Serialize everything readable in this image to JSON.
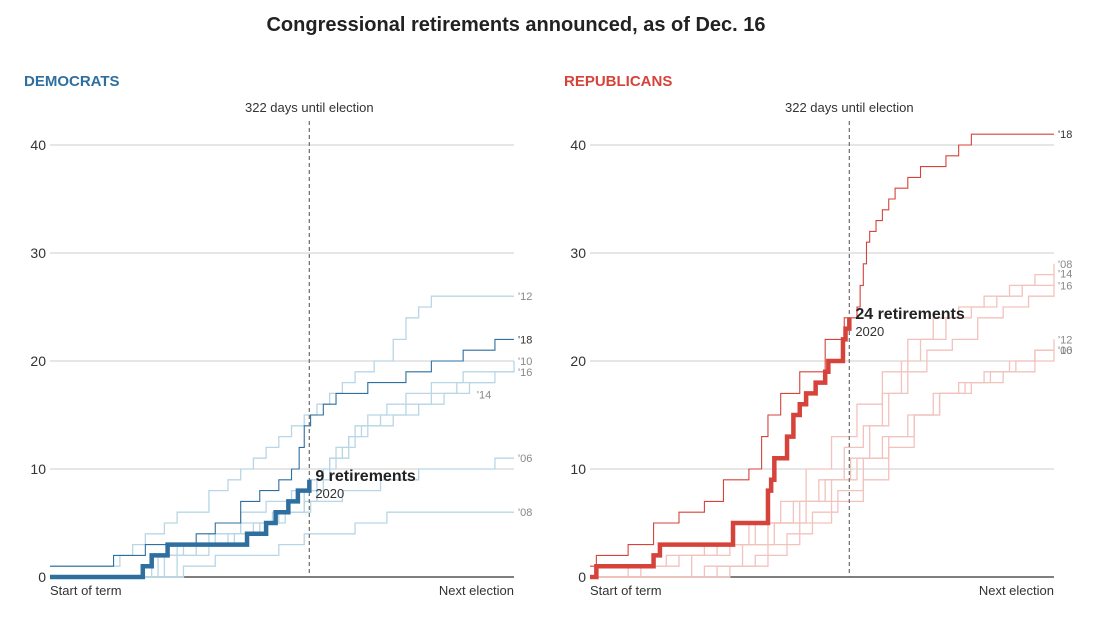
{
  "title": "Congressional retirements announced, as of Dec. 16",
  "colors": {
    "dem": "#2f6f9f",
    "dem_light": "#b9d6e6",
    "rep": "#d6433b",
    "rep_light": "#f2c2bd",
    "grid": "#cccccc",
    "text": "#333333",
    "muted": "#888888"
  },
  "chart_data": [
    {
      "type": "line",
      "panel_title": "DEMOCRATS",
      "xlabel_start": "Start of term",
      "xlabel_end": "Next election",
      "xlim": [
        0,
        730
      ],
      "ylim": [
        0,
        40
      ],
      "yticks": [
        0,
        10,
        20,
        30,
        40
      ],
      "grid": true,
      "marker": {
        "x": 408,
        "label": "322 days until election"
      },
      "current": {
        "name": "2020",
        "count_label": "9 retirements",
        "x": [
          0,
          140,
          146,
          155,
          160,
          170,
          185,
          200,
          230,
          240,
          300,
          310,
          330,
          340,
          345,
          355,
          360,
          375,
          382,
          390,
          398,
          408
        ],
        "y": [
          0,
          0,
          1,
          1,
          2,
          2,
          3,
          3,
          3,
          3,
          3,
          4,
          4,
          5,
          5,
          6,
          6,
          7,
          7,
          8,
          8,
          9
        ]
      },
      "series": [
        {
          "name": "'18",
          "emphasis": true,
          "x": [
            0,
            90,
            100,
            130,
            150,
            190,
            230,
            260,
            300,
            330,
            360,
            380,
            392,
            400,
            410,
            420,
            430,
            450,
            470,
            500,
            530,
            560,
            600,
            650,
            700,
            730
          ],
          "y": [
            1,
            1,
            2,
            2,
            3,
            3,
            4,
            5,
            7,
            8,
            9,
            10,
            12,
            14,
            15,
            15,
            16,
            17,
            17,
            18,
            18,
            19,
            20,
            21,
            22,
            22
          ]
        },
        {
          "name": "'12",
          "x": [
            0,
            100,
            110,
            130,
            150,
            180,
            200,
            250,
            280,
            300,
            320,
            340,
            360,
            380,
            400,
            420,
            440,
            460,
            480,
            510,
            540,
            560,
            580,
            600,
            650,
            730
          ],
          "y": [
            1,
            1,
            2,
            3,
            4,
            5,
            6,
            8,
            9,
            10,
            11,
            12,
            13,
            14,
            15,
            16,
            17,
            18,
            19,
            20,
            22,
            24,
            25,
            26,
            26,
            26
          ]
        },
        {
          "name": "'10",
          "x": [
            0,
            120,
            160,
            200,
            250,
            300,
            350,
            400,
            420,
            440,
            460,
            480,
            500,
            530,
            560,
            600,
            650,
            730
          ],
          "y": [
            0,
            0,
            2,
            3,
            4,
            5,
            6,
            7,
            9,
            11,
            12,
            14,
            15,
            16,
            17,
            18,
            19,
            20
          ]
        },
        {
          "name": "'16",
          "x": [
            0,
            120,
            180,
            230,
            280,
            320,
            360,
            400,
            430,
            450,
            470,
            490,
            520,
            560,
            600,
            640,
            700,
            730
          ],
          "y": [
            0,
            0,
            2,
            3,
            4,
            5,
            6,
            8,
            10,
            12,
            13,
            14,
            15,
            16,
            17,
            18,
            19,
            19
          ]
        },
        {
          "name": "'14",
          "x": [
            0,
            110,
            170,
            210,
            260,
            300,
            340,
            380,
            410,
            440,
            470,
            500,
            540,
            580,
            620,
            660,
            700
          ],
          "y": [
            0,
            0,
            2,
            3,
            4,
            6,
            7,
            8,
            9,
            11,
            13,
            14,
            15,
            16,
            17,
            18,
            18
          ]
        },
        {
          "name": "'06",
          "x": [
            0,
            130,
            200,
            250,
            290,
            330,
            370,
            410,
            460,
            520,
            580,
            640,
            700,
            730
          ],
          "y": [
            0,
            0,
            2,
            3,
            4,
            5,
            6,
            7,
            8,
            9,
            10,
            10,
            11,
            11
          ]
        },
        {
          "name": "'08",
          "x": [
            0,
            150,
            210,
            260,
            300,
            360,
            400,
            440,
            480,
            530,
            600,
            680,
            730
          ],
          "y": [
            0,
            0,
            1,
            2,
            2,
            3,
            4,
            4,
            5,
            6,
            6,
            6,
            6
          ]
        }
      ]
    },
    {
      "type": "line",
      "panel_title": "REPUBLICANS",
      "xlabel_start": "Start of term",
      "xlabel_end": "Next election",
      "xlim": [
        0,
        730
      ],
      "ylim": [
        0,
        40
      ],
      "yticks": [
        0,
        10,
        20,
        30,
        40
      ],
      "grid": true,
      "marker": {
        "x": 408,
        "label": "322 days until election"
      },
      "current": {
        "name": "2020",
        "count_label": "24 retirements",
        "x": [
          0,
          10,
          70,
          100,
          110,
          220,
          225,
          270,
          280,
          285,
          290,
          300,
          310,
          320,
          330,
          340,
          355,
          370,
          375,
          395,
          398,
          402,
          408
        ],
        "y": [
          0,
          1,
          1,
          2,
          3,
          3,
          5,
          5,
          8,
          9,
          11,
          11,
          13,
          15,
          16,
          17,
          18,
          19,
          20,
          20,
          22,
          23,
          24
        ]
      },
      "series": [
        {
          "name": "'18",
          "emphasis": true,
          "x": [
            0,
            10,
            60,
            100,
            140,
            180,
            210,
            250,
            270,
            280,
            300,
            330,
            370,
            400,
            420,
            425,
            430,
            435,
            440,
            450,
            460,
            470,
            480,
            500,
            520,
            540,
            560,
            580,
            600,
            620,
            650,
            700,
            730
          ],
          "y": [
            1,
            2,
            3,
            5,
            6,
            7,
            9,
            10,
            13,
            15,
            17,
            19,
            22,
            24,
            25,
            27,
            29,
            31,
            32,
            33,
            34,
            35,
            36,
            37,
            38,
            38,
            39,
            40,
            41,
            41,
            41,
            41,
            41
          ]
        },
        {
          "name": "'08",
          "x": [
            0,
            60,
            120,
            180,
            250,
            300,
            340,
            380,
            420,
            460,
            500,
            540,
            580,
            620,
            660,
            700,
            730
          ],
          "y": [
            0,
            1,
            2,
            3,
            5,
            7,
            10,
            13,
            16,
            19,
            22,
            24,
            25,
            26,
            27,
            28,
            29
          ]
        },
        {
          "name": "'14",
          "x": [
            0,
            80,
            140,
            200,
            260,
            320,
            360,
            400,
            430,
            460,
            490,
            520,
            560,
            600,
            640,
            680,
            730
          ],
          "y": [
            0,
            1,
            2,
            3,
            5,
            7,
            9,
            12,
            14,
            17,
            20,
            22,
            24,
            25,
            26,
            27,
            28
          ]
        },
        {
          "name": "'16",
          "x": [
            0,
            100,
            160,
            220,
            280,
            330,
            370,
            410,
            440,
            470,
            500,
            530,
            570,
            610,
            650,
            690,
            730
          ],
          "y": [
            0,
            0,
            2,
            3,
            5,
            7,
            9,
            11,
            14,
            17,
            19,
            21,
            22,
            24,
            25,
            26,
            27
          ]
        },
        {
          "name": "'12",
          "x": [
            0,
            120,
            180,
            240,
            290,
            340,
            380,
            420,
            460,
            500,
            540,
            580,
            620,
            660,
            700,
            730
          ],
          "y": [
            0,
            0,
            1,
            3,
            5,
            7,
            9,
            11,
            13,
            15,
            17,
            18,
            19,
            20,
            21,
            22
          ]
        },
        {
          "name": "'10",
          "x": [
            0,
            140,
            200,
            260,
            310,
            350,
            390,
            430,
            470,
            510,
            550,
            590,
            630,
            670,
            700,
            730
          ],
          "y": [
            0,
            0,
            1,
            2,
            4,
            6,
            8,
            11,
            13,
            15,
            17,
            18,
            19,
            20,
            21,
            21
          ]
        },
        {
          "name": "'06",
          "x": [
            0,
            150,
            220,
            280,
            330,
            380,
            430,
            470,
            510,
            550,
            600,
            650,
            700,
            730
          ],
          "y": [
            0,
            0,
            1,
            3,
            5,
            7,
            9,
            12,
            15,
            17,
            18,
            19,
            20,
            21
          ]
        }
      ]
    }
  ]
}
